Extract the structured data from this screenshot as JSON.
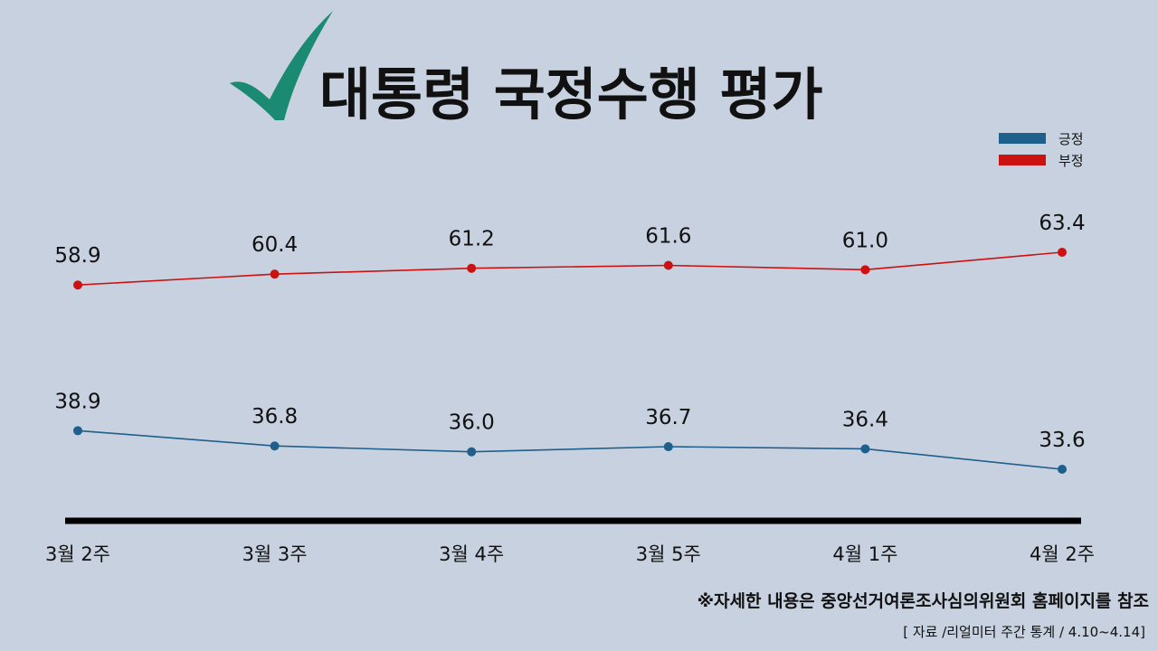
{
  "title": "대통령 국정수행 평가",
  "footnote": "※자세한 내용은 중앙선거여론조사심의위원회 홈페이지를 참조",
  "source": "[ 자료 /리얼미터 주간 통계 / 4.10~4.14]",
  "colors": {
    "background": "#c8d1df",
    "positive": "#1f5f8b",
    "negative": "#cc1111",
    "checkmark": "#1a8a73",
    "axis": "#000000"
  },
  "icons": {
    "title_mark": "checkmark-icon"
  },
  "chart_data": {
    "type": "line",
    "title": "대통령 국정수행 평가",
    "xlabel": "",
    "ylabel": "",
    "categories": [
      "3월 2주",
      "3월 3주",
      "3월 4주",
      "3월 5주",
      "4월 1주",
      "4월 2주"
    ],
    "series": [
      {
        "name": "긍정",
        "color": "#1f5f8b",
        "values": [
          38.9,
          36.8,
          36.0,
          36.7,
          36.4,
          33.6
        ]
      },
      {
        "name": "부정",
        "color": "#cc1111",
        "values": [
          58.9,
          60.4,
          61.2,
          61.6,
          61.0,
          63.4
        ]
      }
    ],
    "legend_position": "top-right",
    "grid": false,
    "data_labels": true
  }
}
